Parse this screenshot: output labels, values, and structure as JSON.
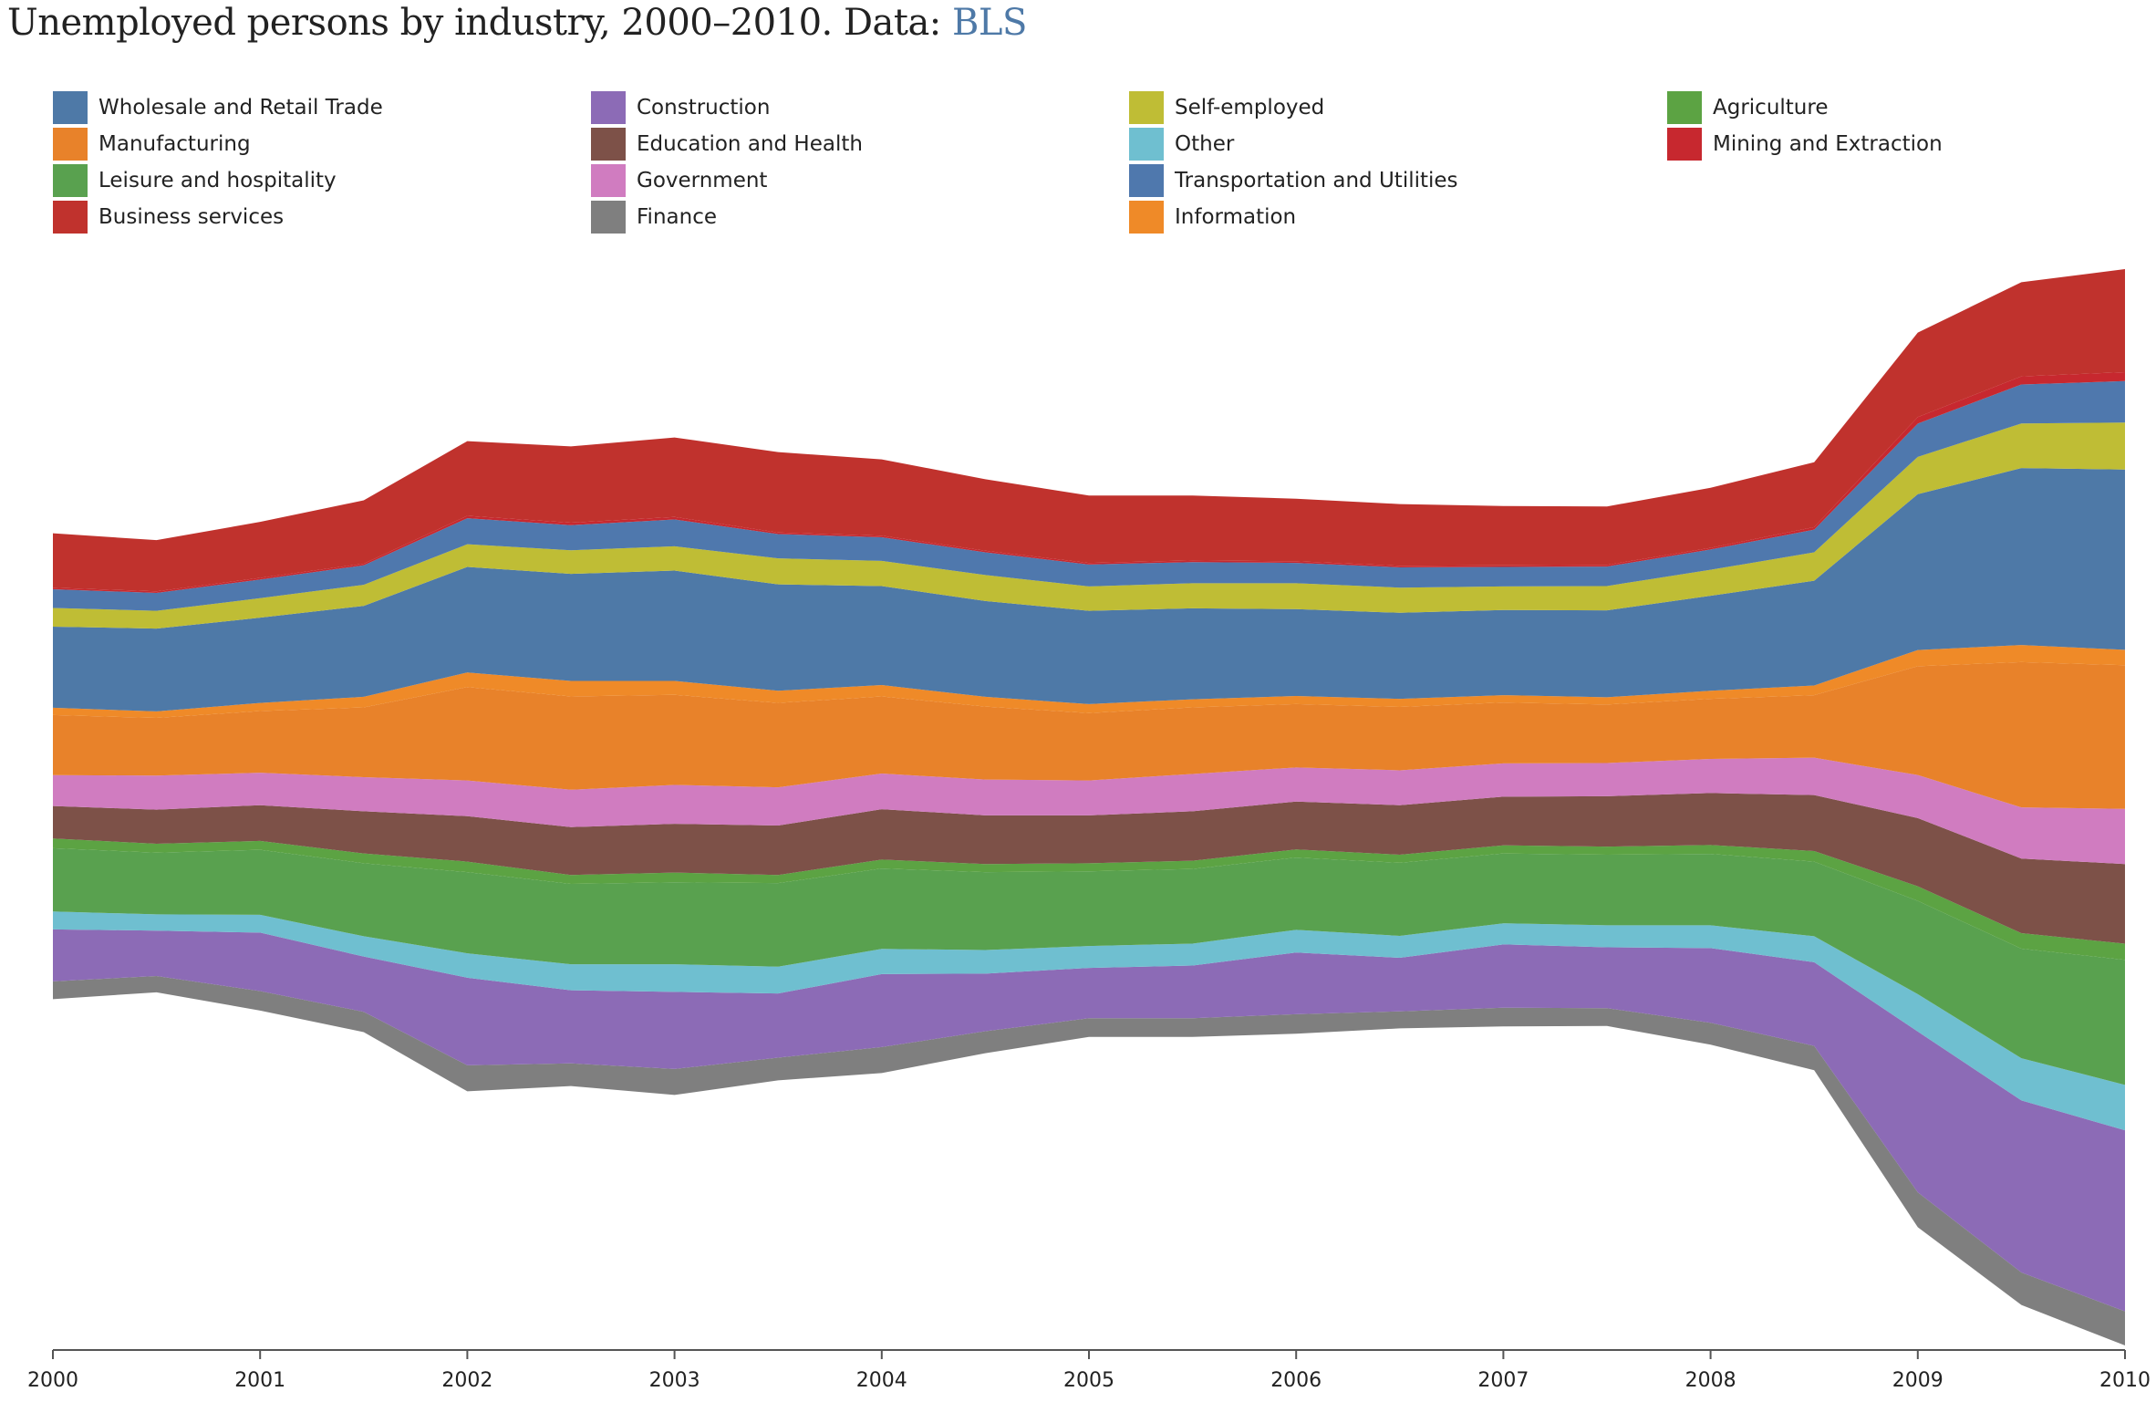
{
  "title": {
    "text": "Unemployed persons by industry, 2000–2010. Data: ",
    "link_text": "BLS"
  },
  "chart_data": {
    "type": "area",
    "subtype": "streamgraph",
    "x_ticks": [
      "2000",
      "2001",
      "2002",
      "2003",
      "2004",
      "2005",
      "2006",
      "2007",
      "2008",
      "2009",
      "2010"
    ],
    "x": [
      "2000-01",
      "2000-07",
      "2001-01",
      "2001-07",
      "2002-01",
      "2002-07",
      "2003-01",
      "2003-07",
      "2004-01",
      "2004-07",
      "2005-01",
      "2005-07",
      "2006-01",
      "2006-07",
      "2007-01",
      "2007-07",
      "2008-01",
      "2008-07",
      "2009-01",
      "2009-07",
      "2010-01"
    ],
    "legend_placement": "top",
    "grid": false,
    "series": [
      {
        "name": "Wholesale and Retail Trade",
        "color": "#4e79a7",
        "values": [
          1000,
          1020,
          1050,
          1120,
          1300,
          1320,
          1360,
          1310,
          1220,
          1180,
          1150,
          1120,
          1070,
          1060,
          1050,
          1070,
          1170,
          1290,
          1920,
          2180,
          2220
        ]
      },
      {
        "name": "Manufacturing",
        "color": "#e8822a",
        "values": [
          740,
          710,
          760,
          860,
          1150,
          1150,
          1110,
          1040,
          950,
          900,
          830,
          820,
          780,
          780,
          750,
          720,
          740,
          770,
          1340,
          1790,
          1770
        ]
      },
      {
        "name": "Leisure and hospitality",
        "color": "#59a14f",
        "values": [
          780,
          760,
          800,
          900,
          1000,
          990,
          1010,
          1030,
          990,
          960,
          920,
          920,
          890,
          900,
          860,
          870,
          880,
          920,
          1150,
          1350,
          1540
        ]
      },
      {
        "name": "Business services",
        "color": "#c0322d",
        "values": [
          670,
          630,
          690,
          780,
          920,
          940,
          980,
          990,
          940,
          880,
          830,
          800,
          770,
          760,
          730,
          720,
          740,
          800,
          1040,
          1160,
          1270
        ]
      },
      {
        "name": "Construction",
        "color": "#8c6bb6",
        "values": [
          640,
          560,
          720,
          680,
          1080,
          900,
          950,
          790,
          900,
          710,
          620,
          650,
          760,
          660,
          780,
          750,
          920,
          1030,
          1980,
          2120,
          2230
        ]
      },
      {
        "name": "Education and Health",
        "color": "#7d5148",
        "values": [
          400,
          420,
          440,
          520,
          560,
          590,
          600,
          610,
          620,
          600,
          590,
          610,
          590,
          610,
          600,
          620,
          640,
          690,
          840,
          920,
          980
        ]
      },
      {
        "name": "Government",
        "color": "#d07cc0",
        "values": [
          380,
          420,
          400,
          420,
          440,
          460,
          480,
          470,
          440,
          440,
          430,
          460,
          420,
          430,
          410,
          410,
          420,
          460,
          530,
          630,
          680
        ]
      },
      {
        "name": "Finance",
        "color": "#7f7f7f",
        "values": [
          220,
          200,
          240,
          250,
          320,
          280,
          320,
          280,
          320,
          270,
          230,
          230,
          240,
          210,
          230,
          220,
          270,
          300,
          430,
          400,
          420
        ]
      },
      {
        "name": "Self-employed",
        "color": "#bfbd35",
        "values": [
          230,
          220,
          240,
          260,
          280,
          290,
          300,
          320,
          310,
          320,
          300,
          310,
          320,
          310,
          290,
          300,
          320,
          350,
          460,
          550,
          580
        ]
      },
      {
        "name": "Other",
        "color": "#6fbfd0",
        "values": [
          220,
          200,
          220,
          250,
          300,
          320,
          340,
          330,
          310,
          290,
          270,
          270,
          280,
          270,
          260,
          270,
          280,
          320,
          460,
          520,
          560
        ]
      },
      {
        "name": "Transportation and Utilities",
        "color": "#4f78ad",
        "values": [
          230,
          220,
          230,
          240,
          320,
          310,
          330,
          300,
          290,
          280,
          270,
          260,
          250,
          250,
          240,
          240,
          250,
          280,
          410,
          480,
          510
        ]
      },
      {
        "name": "Information",
        "color": "#ef8a28",
        "values": [
          90,
          80,
          100,
          130,
          180,
          190,
          170,
          150,
          140,
          120,
          110,
          100,
          100,
          100,
          90,
          90,
          100,
          120,
          200,
          210,
          190
        ]
      },
      {
        "name": "Agriculture",
        "color": "#5ca343",
        "values": [
          120,
          110,
          110,
          120,
          130,
          110,
          120,
          100,
          110,
          100,
          100,
          100,
          100,
          100,
          100,
          100,
          110,
          130,
          180,
          190,
          200
        ]
      },
      {
        "name": "Mining and Extraction",
        "color": "#c7282f",
        "values": [
          20,
          20,
          20,
          20,
          30,
          30,
          30,
          20,
          20,
          20,
          20,
          20,
          20,
          20,
          20,
          20,
          20,
          30,
          80,
          100,
          110
        ]
      }
    ]
  }
}
